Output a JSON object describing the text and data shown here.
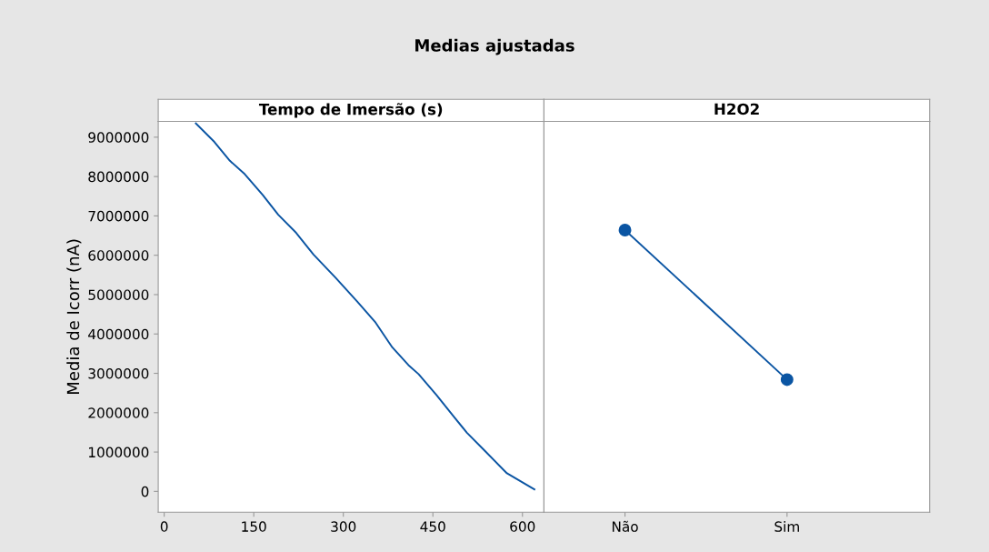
{
  "chart_data": [
    {
      "type": "line",
      "title": "Medias ajustadas",
      "subtitle": "Tempo de Imersão (s)",
      "ylabel": "Media de Icorr (nA)",
      "x": [
        53,
        84,
        110,
        135,
        165,
        191,
        221,
        250,
        287,
        324,
        353,
        382,
        409,
        426,
        456,
        485,
        507,
        537,
        574,
        620
      ],
      "series": [
        {
          "color": "#0b55a3",
          "values": [
            9350000,
            8880000,
            8400000,
            8060000,
            7530000,
            7030000,
            6570000,
            6020000,
            5430000,
            4810000,
            4310000,
            3660000,
            3210000,
            2980000,
            2450000,
            1900000,
            1490000,
            1030000,
            460000,
            50000
          ]
        }
      ],
      "xlim": [
        -10,
        636
      ],
      "xticks": [
        0,
        150,
        300,
        450,
        600
      ],
      "ylim": [
        -530000,
        9400000
      ],
      "yticks": [
        0,
        1000000,
        2000000,
        3000000,
        4000000,
        5000000,
        6000000,
        7000000,
        8000000,
        9000000
      ],
      "marker": "none",
      "grid": false
    },
    {
      "type": "line",
      "subtitle": "H2O2",
      "categories": [
        "Não",
        "Sim"
      ],
      "series": [
        {
          "color": "#0b55a3",
          "values": [
            6640000,
            2840000
          ]
        }
      ],
      "ylim": [
        -530000,
        9400000
      ],
      "tick_labels": "x",
      "marker": "circle",
      "grid": false
    }
  ]
}
